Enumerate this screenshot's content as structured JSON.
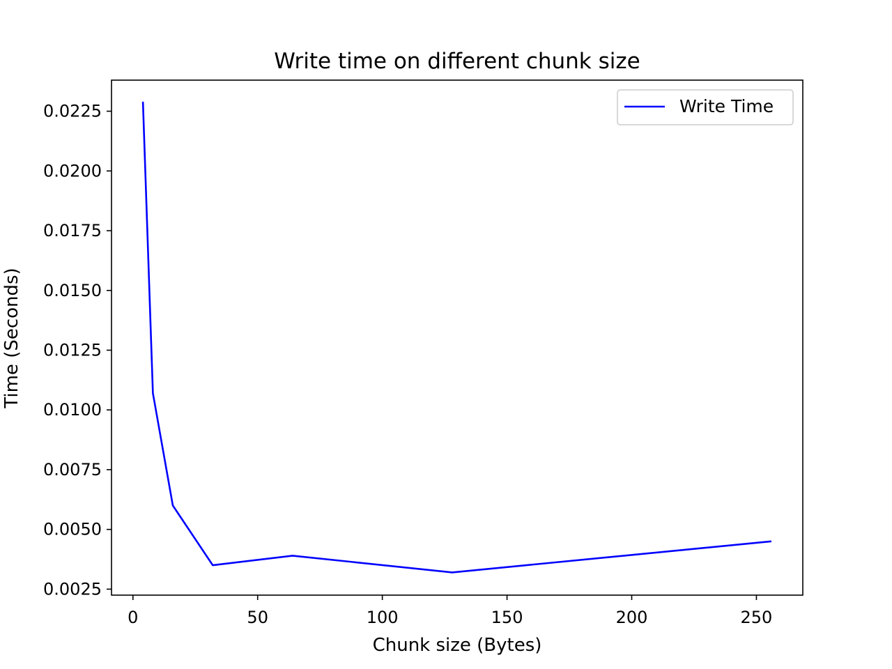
{
  "chart_data": {
    "type": "line",
    "title": "Write time on different chunk size",
    "xlabel": "Chunk size (Bytes)",
    "ylabel": "Time (Seconds)",
    "xlim": [
      -8.6,
      268.6
    ],
    "ylim": [
      0.00225,
      0.0238
    ],
    "xticks": [
      0,
      50,
      100,
      150,
      200,
      250
    ],
    "xtick_labels": [
      "0",
      "50",
      "100",
      "150",
      "200",
      "250"
    ],
    "yticks": [
      0.0025,
      0.005,
      0.0075,
      0.01,
      0.0125,
      0.015,
      0.0175,
      0.02,
      0.0225
    ],
    "ytick_labels": [
      "0.0025",
      "0.0050",
      "0.0075",
      "0.0100",
      "0.0125",
      "0.0150",
      "0.0175",
      "0.0200",
      "0.0225"
    ],
    "grid": false,
    "legend_position": "top-right",
    "series": [
      {
        "name": "Write Time",
        "color": "#0000ff",
        "x": [
          4,
          8,
          16,
          32,
          64,
          128,
          256
        ],
        "y": [
          0.0229,
          0.0107,
          0.006,
          0.0035,
          0.0039,
          0.0032,
          0.0045
        ]
      }
    ]
  }
}
